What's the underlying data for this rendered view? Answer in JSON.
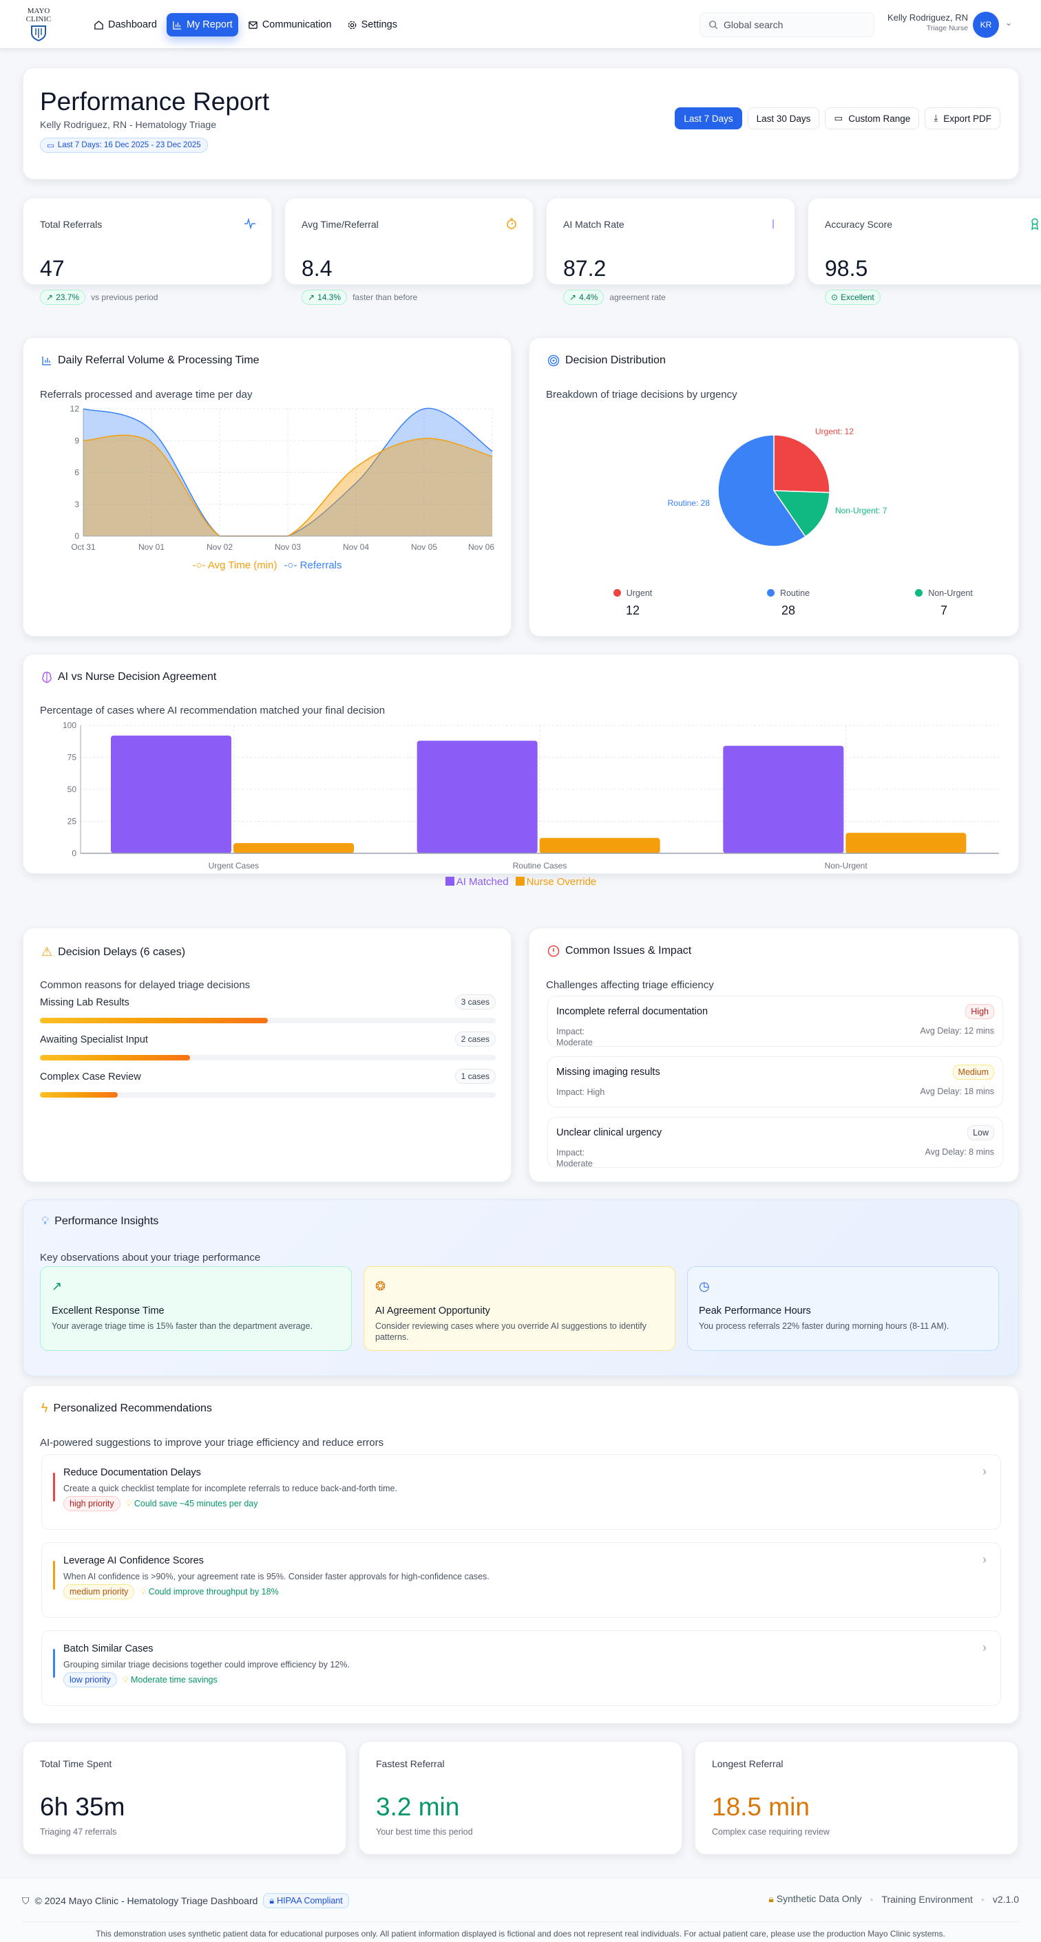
{
  "nav": {
    "logo": "MAYO CLINIC",
    "links": [
      {
        "label": "Dashboard",
        "icon": "home-icon"
      },
      {
        "label": "My Report",
        "icon": "bar-chart-icon",
        "active": true
      },
      {
        "label": "Communication",
        "icon": "mail-icon"
      },
      {
        "label": "Settings",
        "icon": "gear-icon"
      }
    ],
    "search_placeholder": "Global search",
    "user_name": "Kelly Rodriguez, RN",
    "user_role": "Triage Nurse",
    "avatar_initials": "KR"
  },
  "header": {
    "title": "Performance Report",
    "subtitle": "Kelly Rodriguez, RN - Hematology Triage",
    "date_range": "Last 7 Days: 16 Dec 2025 - 23 Dec 2025",
    "buttons": [
      "Last 7 Days",
      "Last 30 Days",
      "Custom Range",
      "Export PDF"
    ],
    "active_button": "Last 7 Days"
  },
  "kpis": [
    {
      "label": "Total Referrals",
      "value": "47",
      "badge": "23.7%",
      "note": "vs previous period",
      "icon": "activity-icon",
      "color": "#3b82f6"
    },
    {
      "label": "Avg Time/Referral",
      "value": "8.4",
      "badge": "14.3%",
      "note": "faster than before",
      "icon": "timer-icon",
      "color": "#f59e0b"
    },
    {
      "label": "AI Match Rate",
      "value": "87.2",
      "badge": "4.4%",
      "note": "agreement rate",
      "icon": "brain-icon",
      "color": "#a855f7"
    },
    {
      "label": "Accuracy Score",
      "value": "98.5",
      "badge": "Excellent",
      "note": "",
      "icon": "award-icon",
      "color": "#10b981"
    }
  ],
  "volume": {
    "title": "Daily Referral Volume & Processing Time",
    "subtitle": "Referrals processed and average time per day"
  },
  "distribution": {
    "title": "Decision Distribution",
    "subtitle": "Breakdown of triage decisions by urgency"
  },
  "agreement": {
    "title": "AI vs Nurse Decision Agreement",
    "subtitle": "Percentage of cases where AI recommendation matched your final decision"
  },
  "chart_data": [
    {
      "type": "area",
      "categories": [
        "Oct 31",
        "Nov 01",
        "Nov 02",
        "Nov 03",
        "Nov 04",
        "Nov 05",
        "Nov 06"
      ],
      "ylim": [
        0,
        12
      ],
      "yticks": [
        0,
        3,
        6,
        9,
        12
      ],
      "grid": true,
      "legend": "bottom",
      "series": [
        {
          "name": "Avg Time (min)",
          "color": "#f59e0b",
          "values": [
            9,
            8.8,
            0,
            0,
            6.5,
            9.2,
            7.5
          ]
        },
        {
          "name": "Referrals",
          "color": "#3b82f6",
          "values": [
            12,
            10,
            0,
            0,
            5,
            12,
            8
          ]
        }
      ]
    },
    {
      "type": "pie",
      "labels": [
        "Urgent",
        "Routine",
        "Non-Urgent"
      ],
      "values": [
        12,
        28,
        7
      ],
      "colors": [
        "#ef4444",
        "#3b82f6",
        "#10b981"
      ],
      "slice_labels": [
        "Urgent: 12",
        "Routine: 28",
        "Non-Urgent: 7"
      ],
      "legend": "bottom"
    },
    {
      "type": "bar",
      "categories": [
        "Urgent Cases",
        "Routine Cases",
        "Non-Urgent"
      ],
      "ylim": [
        0,
        100
      ],
      "yticks": [
        0,
        25,
        50,
        75,
        100
      ],
      "grid": true,
      "legend": "bottom",
      "series": [
        {
          "name": "AI Matched",
          "color": "#8b5cf6",
          "values": [
            92,
            88,
            84
          ]
        },
        {
          "name": "Nurse Override",
          "color": "#f59e0b",
          "values": [
            8,
            12,
            16
          ]
        }
      ]
    }
  ],
  "delays": {
    "title": "Decision Delays (6 cases)",
    "subtitle": "Common reasons for delayed triage decisions",
    "items": [
      {
        "label": "Missing Lab Results",
        "count": "3 cases",
        "share": 0.5
      },
      {
        "label": "Awaiting Specialist Input",
        "count": "2 cases",
        "share": 0.33
      },
      {
        "label": "Complex Case Review",
        "count": "1 cases",
        "share": 0.17
      }
    ]
  },
  "issues": {
    "title": "Common Issues & Impact",
    "subtitle": "Challenges affecting triage efficiency",
    "items": [
      {
        "title": "Incomplete referral documentation",
        "level": "High",
        "impact": "Impact: Moderate",
        "delay": "Avg Delay: 12 mins"
      },
      {
        "title": "Missing imaging results",
        "level": "Medium",
        "impact": "Impact: High",
        "delay": "Avg Delay: 18 mins"
      },
      {
        "title": "Unclear clinical urgency",
        "level": "Low",
        "impact": "Impact: Moderate",
        "delay": "Avg Delay: 8 mins"
      }
    ]
  },
  "insights": {
    "title": "Performance Insights",
    "subtitle": "Key observations about your triage performance",
    "items": [
      {
        "title": "Excellent Response Time",
        "desc": "Your average triage time is 15% faster than the department average.",
        "icon": "trending-up-icon"
      },
      {
        "title": "AI Agreement Opportunity",
        "desc": "Consider reviewing cases where you override AI suggestions to identify patterns.",
        "icon": "brain-icon"
      },
      {
        "title": "Peak Performance Hours",
        "desc": "You process referrals 22% faster during morning hours (8-11 AM).",
        "icon": "clock-icon"
      }
    ]
  },
  "recommendations": {
    "title": "Personalized Recommendations",
    "subtitle": "AI-powered suggestions to improve your triage efficiency and reduce errors",
    "items": [
      {
        "title": "Reduce Documentation Delays",
        "desc": "Create a quick checklist template for incomplete referrals to reduce back-and-forth time.",
        "priority": "high priority",
        "saving": "Could save ~45 minutes per day"
      },
      {
        "title": "Leverage AI Confidence Scores",
        "desc": "When AI confidence is >90%, your agreement rate is 95%. Consider faster approvals for high-confidence cases.",
        "priority": "medium priority",
        "saving": "Could improve throughput by 18%"
      },
      {
        "title": "Batch Similar Cases",
        "desc": "Grouping similar triage decisions together could improve efficiency by 12%.",
        "priority": "low priority",
        "saving": "Moderate time savings"
      }
    ]
  },
  "stats": [
    {
      "label": "Total Time Spent",
      "value": "6h 35m",
      "note": "Triaging 47 referrals",
      "color": "#0f172a"
    },
    {
      "label": "Fastest Referral",
      "value": "3.2 min",
      "note": "Your best time this period",
      "color": "#059669"
    },
    {
      "label": "Longest Referral",
      "value": "18.5 min",
      "note": "Complex case requiring review",
      "color": "#d97706"
    }
  ],
  "footer": {
    "copyright": "© 2024 Mayo Clinic - Hematology Triage Dashboard",
    "hipaa": "HIPAA Compliant",
    "synthetic": "Synthetic Data Only",
    "env": "Training Environment",
    "version": "v2.1.0",
    "disclaimer": "This demonstration uses synthetic patient data for educational purposes only. All patient information displayed is fictional and does not represent real individuals. For actual patient care, please use the production Mayo Clinic systems."
  }
}
